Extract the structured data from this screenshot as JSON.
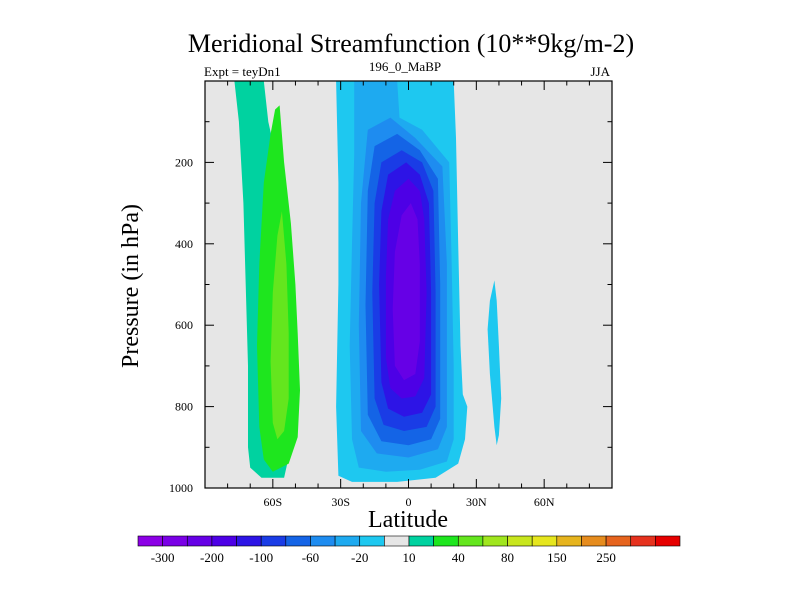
{
  "chart_data": {
    "type": "contour",
    "title": "Meridional Streamfunction (10**9kg/m-2)",
    "left_string": "Expt = teyDn1",
    "center_string": "196_0_MaBP",
    "right_string": "JJA",
    "xlabel": "Latitude",
    "ylabel": "Pressure (in hPa)",
    "xlim": [
      -90,
      90
    ],
    "ylim": [
      1000,
      0
    ],
    "x_ticks": [
      {
        "value": -60,
        "label": "60S"
      },
      {
        "value": -30,
        "label": "30S"
      },
      {
        "value": 0,
        "label": "0"
      },
      {
        "value": 30,
        "label": "30N"
      },
      {
        "value": 60,
        "label": "60N"
      }
    ],
    "y_ticks": [
      {
        "value": 200,
        "label": "200"
      },
      {
        "value": 400,
        "label": "400"
      },
      {
        "value": 600,
        "label": "600"
      },
      {
        "value": 800,
        "label": "800"
      },
      {
        "value": 1000,
        "label": "1000"
      }
    ],
    "missing_color": "#e6e6e6",
    "colorbar": {
      "colors": [
        "#8c00e6",
        "#7a00e6",
        "#6600e6",
        "#4d00e6",
        "#2d14e6",
        "#1a3ce6",
        "#1464e6",
        "#1e8cf0",
        "#1eaaf0",
        "#1ec8f0",
        "#e6e6e6",
        "#00d2a0",
        "#1ee61e",
        "#64e61e",
        "#a0e61e",
        "#c8e61e",
        "#e6e61e",
        "#e6b41e",
        "#e68c1e",
        "#e6641e",
        "#e6321e",
        "#e60000"
      ],
      "labels": [
        {
          "after": 0,
          "text": "-300"
        },
        {
          "after": 2,
          "text": "-200"
        },
        {
          "after": 4,
          "text": "-100"
        },
        {
          "after": 6,
          "text": "-60"
        },
        {
          "after": 8,
          "text": "-20"
        },
        {
          "after": 10,
          "text": "10"
        },
        {
          "after": 12,
          "text": "40"
        },
        {
          "after": 14,
          "text": "80"
        },
        {
          "after": 16,
          "text": "150"
        },
        {
          "after": 18,
          "text": "250"
        }
      ]
    },
    "regions": [
      {
        "name": "cell-sh-level-10",
        "color": "#00d2a0",
        "points": [
          [
            -77,
            0
          ],
          [
            -64,
            0
          ],
          [
            -62,
            100
          ],
          [
            -60,
            150
          ],
          [
            -55,
            350
          ],
          [
            -54,
            500
          ],
          [
            -53,
            650
          ],
          [
            -52,
            900
          ],
          [
            -55,
            975
          ],
          [
            -65,
            975
          ],
          [
            -70,
            950
          ],
          [
            -71,
            900
          ],
          [
            -71,
            700
          ],
          [
            -72,
            500
          ],
          [
            -73,
            300
          ],
          [
            -75,
            100
          ]
        ]
      },
      {
        "name": "cell-sh-level-40",
        "color": "#1ee61e",
        "points": [
          [
            -57,
            60
          ],
          [
            -55,
            200
          ],
          [
            -52,
            350
          ],
          [
            -50,
            500
          ],
          [
            -49,
            620
          ],
          [
            -48,
            760
          ],
          [
            -49,
            875
          ],
          [
            -53,
            940
          ],
          [
            -60,
            960
          ],
          [
            -64,
            930
          ],
          [
            -66,
            850
          ],
          [
            -67,
            650
          ],
          [
            -66,
            450
          ],
          [
            -64,
            250
          ],
          [
            -61,
            130
          ],
          [
            -59,
            70
          ]
        ]
      },
      {
        "name": "cell-sh-level-80",
        "color": "#64e61e",
        "points": [
          [
            -56,
            320
          ],
          [
            -54,
            450
          ],
          [
            -53,
            620
          ],
          [
            -53,
            780
          ],
          [
            -55,
            860
          ],
          [
            -58,
            880
          ],
          [
            -60,
            840
          ],
          [
            -61,
            690
          ],
          [
            -60,
            520
          ],
          [
            -58,
            380
          ]
        ]
      },
      {
        "name": "cell-equator-level-neg20",
        "color": "#1ec8f0",
        "points": [
          [
            -32,
            0
          ],
          [
            20,
            0
          ],
          [
            21,
            140
          ],
          [
            22,
            400
          ],
          [
            23,
            650
          ],
          [
            24,
            770
          ],
          [
            26,
            800
          ],
          [
            25,
            880
          ],
          [
            22,
            940
          ],
          [
            12,
            975
          ],
          [
            -5,
            985
          ],
          [
            -25,
            985
          ],
          [
            -31,
            970
          ],
          [
            -32,
            800
          ],
          [
            -31,
            500
          ],
          [
            -31,
            250
          ]
        ]
      },
      {
        "name": "cell-equator-level-neg60",
        "color": "#1eaaf0",
        "points": [
          [
            -24,
            0
          ],
          [
            -5,
            0
          ],
          [
            -4,
            90
          ],
          [
            6,
            120
          ],
          [
            18,
            200
          ],
          [
            19,
            430
          ],
          [
            20,
            700
          ],
          [
            20,
            880
          ],
          [
            17,
            935
          ],
          [
            5,
            955
          ],
          [
            -10,
            960
          ],
          [
            -22,
            950
          ],
          [
            -25,
            880
          ],
          [
            -26,
            650
          ],
          [
            -25,
            400
          ],
          [
            -24,
            180
          ]
        ]
      },
      {
        "name": "cell-equator-level-neg100",
        "color": "#1e8cf0",
        "points": [
          [
            -18,
            120
          ],
          [
            -8,
            90
          ],
          [
            3,
            140
          ],
          [
            15,
            210
          ],
          [
            17,
            450
          ],
          [
            17,
            850
          ],
          [
            13,
            905
          ],
          [
            0,
            925
          ],
          [
            -14,
            915
          ],
          [
            -21,
            860
          ],
          [
            -22,
            600
          ],
          [
            -21,
            300
          ]
        ]
      },
      {
        "name": "cell-equator-level-neg150",
        "color": "#1464e6",
        "points": [
          [
            -15,
            160
          ],
          [
            -5,
            130
          ],
          [
            5,
            170
          ],
          [
            13,
            240
          ],
          [
            14,
            500
          ],
          [
            14,
            830
          ],
          [
            10,
            880
          ],
          [
            0,
            895
          ],
          [
            -12,
            885
          ],
          [
            -18,
            820
          ],
          [
            -19,
            550
          ],
          [
            -18,
            270
          ]
        ]
      },
      {
        "name": "cell-equator-level-neg200",
        "color": "#1a3ce6",
        "points": [
          [
            -12,
            200
          ],
          [
            -3,
            170
          ],
          [
            6,
            200
          ],
          [
            11,
            270
          ],
          [
            12,
            520
          ],
          [
            12,
            800
          ],
          [
            8,
            850
          ],
          [
            -2,
            860
          ],
          [
            -11,
            845
          ],
          [
            -15,
            780
          ],
          [
            -16,
            520
          ],
          [
            -15,
            300
          ]
        ]
      },
      {
        "name": "cell-equator-level-neg250",
        "color": "#2d14e6",
        "points": [
          [
            -9,
            230
          ],
          [
            -1,
            200
          ],
          [
            5,
            230
          ],
          [
            9,
            300
          ],
          [
            10,
            520
          ],
          [
            10,
            770
          ],
          [
            6,
            815
          ],
          [
            -2,
            825
          ],
          [
            -9,
            805
          ],
          [
            -12,
            740
          ],
          [
            -13,
            500
          ],
          [
            -12,
            320
          ]
        ]
      },
      {
        "name": "cell-equator-level-neg300",
        "color": "#4d00e6",
        "points": [
          [
            -6,
            270
          ],
          [
            0,
            240
          ],
          [
            5,
            270
          ],
          [
            7,
            340
          ],
          [
            8,
            520
          ],
          [
            7,
            730
          ],
          [
            3,
            775
          ],
          [
            -3,
            780
          ],
          [
            -8,
            755
          ],
          [
            -10,
            680
          ],
          [
            -10,
            480
          ],
          [
            -9,
            340
          ]
        ]
      },
      {
        "name": "cell-equator-level-neg350",
        "color": "#6600e6",
        "points": [
          [
            -3,
            330
          ],
          [
            1,
            300
          ],
          [
            4,
            340
          ],
          [
            5,
            450
          ],
          [
            5,
            640
          ],
          [
            3,
            720
          ],
          [
            -2,
            735
          ],
          [
            -6,
            700
          ],
          [
            -7,
            560
          ],
          [
            -6,
            420
          ]
        ]
      },
      {
        "name": "cell-nh-level-neg20",
        "color": "#1ec8f0",
        "points": [
          [
            38,
            490
          ],
          [
            39,
            540
          ],
          [
            40,
            650
          ],
          [
            41,
            780
          ],
          [
            40,
            870
          ],
          [
            39,
            895
          ],
          [
            38,
            850
          ],
          [
            36,
            720
          ],
          [
            35,
            610
          ],
          [
            36,
            540
          ]
        ]
      }
    ]
  }
}
